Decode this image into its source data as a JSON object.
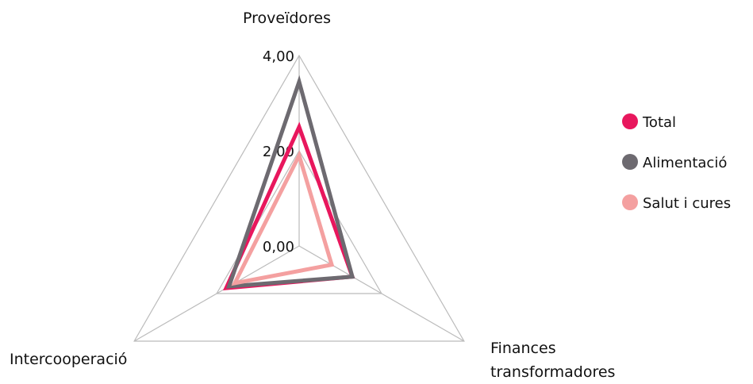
{
  "chart_data": {
    "type": "radar",
    "categories": [
      "Proveïdores",
      "Finances transformadores",
      "Intercooperació"
    ],
    "series": [
      {
        "name": "Total",
        "color": "#e8175d",
        "values": [
          2.5,
          1.29,
          1.77
        ]
      },
      {
        "name": "Alimentació",
        "color": "#6d6a70",
        "values": [
          3.45,
          1.29,
          1.7
        ]
      },
      {
        "name": "Salut i cures",
        "color": "#f4a0a0",
        "values": [
          1.9,
          0.79,
          1.56
        ]
      }
    ],
    "ylim": [
      0,
      4
    ],
    "yticks": [
      {
        "value": 0,
        "label": "0,00"
      },
      {
        "value": 2,
        "label": "2,00"
      },
      {
        "value": 4,
        "label": "4,00"
      }
    ],
    "grid": true,
    "legend": "right"
  }
}
